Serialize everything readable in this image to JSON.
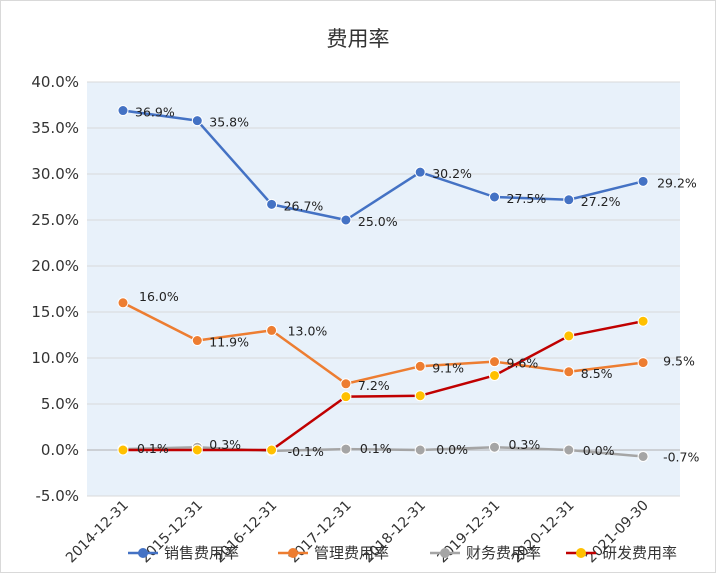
{
  "chart_data": {
    "type": "line",
    "title": "费用率",
    "categories": [
      "2014-12-31",
      "2015-12-31",
      "2016-12-31",
      "2017-12-31",
      "2018-12-31",
      "2019-12-31",
      "2020-12-31",
      "2021-09-30"
    ],
    "ylim": [
      -5,
      40
    ],
    "yticks": [
      -5,
      0,
      5,
      10,
      15,
      20,
      25,
      30,
      35,
      40
    ],
    "ytick_labels": [
      "-5.0%",
      "0.0%",
      "5.0%",
      "10.0%",
      "15.0%",
      "20.0%",
      "25.0%",
      "30.0%",
      "35.0%",
      "40.0%"
    ],
    "grid": "horizontal",
    "legend": "bottom",
    "series": [
      {
        "name": "销售费用率",
        "color": "#4472c4",
        "values": [
          36.9,
          35.8,
          26.7,
          25.0,
          30.2,
          27.5,
          27.2,
          29.2
        ],
        "labels": [
          "36.9%",
          "35.8%",
          "26.7%",
          "25.0%",
          "30.2%",
          "27.5%",
          "27.2%",
          "29.2%"
        ]
      },
      {
        "name": "管理费用率",
        "color": "#ed7d31",
        "values": [
          16.0,
          11.9,
          13.0,
          7.2,
          9.1,
          9.6,
          8.5,
          9.5
        ],
        "labels": [
          "16.0%",
          "11.9%",
          "13.0%",
          "7.2%",
          "9.1%",
          "9.6%",
          "8.5%",
          "9.5%"
        ]
      },
      {
        "name": "财务费用率",
        "color": "#a5a5a5",
        "values": [
          0.1,
          0.3,
          -0.1,
          0.1,
          0.0,
          0.3,
          0.0,
          -0.7
        ],
        "labels": [
          "0.1%",
          "0.3%",
          "-0.1%",
          "0.1%",
          "0.0%",
          "0.3%",
          "0.0%",
          "-0.7%"
        ]
      },
      {
        "name": "研发费用率",
        "color": "#c00000",
        "marker_color": "#ffc000",
        "values": [
          0.0,
          0.0,
          0.0,
          5.8,
          5.9,
          8.1,
          12.4,
          14.0
        ],
        "labels": []
      }
    ]
  }
}
